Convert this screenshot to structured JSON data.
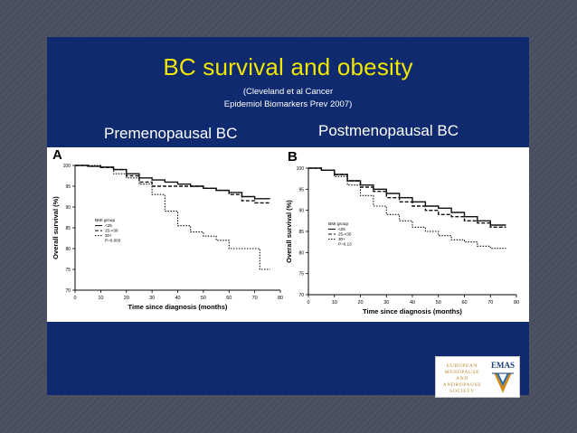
{
  "slide": {
    "title": "BC survival and obesity",
    "citation_line1": "(Cleveland et al Cancer",
    "citation_line2": "Epidemiol Biomarkers Prev 2007)",
    "subtitle_left": "Premenopausal BC",
    "subtitle_right": "Postmenopausal BC"
  },
  "logo": {
    "org_lines": [
      "EUROPEAN",
      "MENOPAUSE",
      "AND",
      "ANDROPAUSE",
      "SOCIETY"
    ],
    "acronym": "EMAS"
  },
  "colors": {
    "slide_bg": "#0f2a6e",
    "title": "#f2e600",
    "text": "#ffffff"
  },
  "chart_data": [
    {
      "type": "line",
      "panel": "A",
      "xlabel": "Time since diagnosis (months)",
      "ylabel": "Overall survival (%)",
      "xlim": [
        0,
        80
      ],
      "ylim": [
        70,
        100
      ],
      "xticks": [
        0,
        10,
        20,
        30,
        40,
        50,
        60,
        70,
        80
      ],
      "yticks": [
        70,
        75,
        80,
        85,
        90,
        95,
        100
      ],
      "legend_title": "BMI group",
      "legend_position": "left-center",
      "p_value": "P=0.003",
      "series": [
        {
          "name": "<25",
          "style": "solid",
          "x": [
            0,
            5,
            10,
            15,
            20,
            25,
            30,
            35,
            40,
            45,
            50,
            55,
            60,
            65,
            70,
            76
          ],
          "y": [
            100,
            99.8,
            99.6,
            99,
            98,
            97,
            96.5,
            96,
            95.5,
            95,
            94.5,
            94,
            93.5,
            92.5,
            92,
            92
          ]
        },
        {
          "name": "25-<30",
          "style": "dashed",
          "x": [
            0,
            5,
            10,
            15,
            20,
            25,
            30,
            35,
            40,
            45,
            50,
            55,
            60,
            65,
            70,
            76
          ],
          "y": [
            100,
            99.8,
            99.5,
            99,
            97.5,
            96,
            95,
            95,
            95,
            95,
            94.5,
            94,
            93,
            91.5,
            91,
            91
          ]
        },
        {
          "name": "30+",
          "style": "dotted",
          "x": [
            0,
            5,
            10,
            15,
            20,
            25,
            30,
            35,
            40,
            45,
            50,
            55,
            60,
            65,
            70,
            72,
            76
          ],
          "y": [
            100,
            100,
            99.5,
            98,
            97,
            95.5,
            93,
            89,
            85.5,
            84,
            83,
            82,
            80,
            80,
            80,
            75,
            75
          ]
        }
      ]
    },
    {
      "type": "line",
      "panel": "B",
      "xlabel": "Time since diagnosis (months)",
      "ylabel": "Overall survival (%)",
      "xlim": [
        0,
        80
      ],
      "ylim": [
        70,
        100
      ],
      "xticks": [
        0,
        10,
        20,
        30,
        40,
        50,
        60,
        70,
        80
      ],
      "yticks": [
        70,
        75,
        80,
        85,
        90,
        95,
        100
      ],
      "legend_title": "BMI group",
      "legend_position": "left-center",
      "p_value": "P=0.13",
      "series": [
        {
          "name": "<25",
          "style": "solid",
          "x": [
            0,
            5,
            10,
            15,
            20,
            25,
            30,
            35,
            40,
            45,
            50,
            55,
            60,
            65,
            70,
            76
          ],
          "y": [
            100,
            99.5,
            98.5,
            97,
            96,
            95,
            94,
            93,
            92,
            91,
            90.5,
            89.5,
            88.5,
            87.5,
            86.5,
            86.5
          ]
        },
        {
          "name": "25-<30",
          "style": "dashed",
          "x": [
            0,
            5,
            10,
            15,
            20,
            25,
            30,
            35,
            40,
            45,
            50,
            55,
            60,
            65,
            70,
            76
          ],
          "y": [
            100,
            99.5,
            98.5,
            97,
            95.5,
            94.5,
            93,
            92,
            91,
            90,
            89,
            88.5,
            87.5,
            87,
            86,
            86
          ]
        },
        {
          "name": "30+",
          "style": "dotted",
          "x": [
            0,
            5,
            10,
            15,
            20,
            25,
            30,
            35,
            40,
            45,
            50,
            55,
            60,
            65,
            70,
            76
          ],
          "y": [
            100,
            99.5,
            98,
            96,
            93.5,
            91,
            89,
            87.5,
            86,
            85,
            84,
            83,
            82.5,
            81.5,
            81,
            81
          ]
        }
      ]
    }
  ]
}
